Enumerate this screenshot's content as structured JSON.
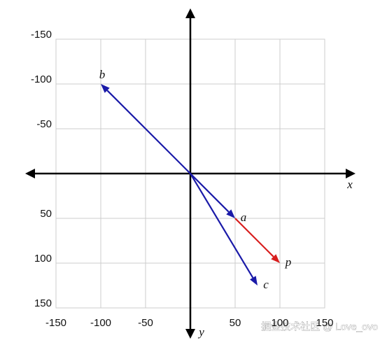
{
  "chart_data": {
    "type": "vector",
    "x_label": "x",
    "y_label": "y",
    "xlim": [
      -150,
      150
    ],
    "ylim": [
      150,
      -150
    ],
    "xticks": [
      -150,
      -100,
      -50,
      50,
      100,
      150
    ],
    "yticks": [
      -150,
      -100,
      -50,
      50,
      100,
      150
    ],
    "grid": true,
    "vectors": [
      {
        "name": "a",
        "color": "#1a1aa8",
        "start": [
          0,
          0
        ],
        "end": [
          50,
          50
        ]
      },
      {
        "name": "b",
        "color": "#1a1aa8",
        "start": [
          0,
          0
        ],
        "end": [
          -100,
          -100
        ]
      },
      {
        "name": "c",
        "color": "#1a1aa8",
        "start": [
          0,
          0
        ],
        "end": [
          75,
          125
        ]
      },
      {
        "name": "p",
        "color": "#d81e1e",
        "start": [
          50,
          50
        ],
        "end": [
          100,
          100
        ]
      }
    ],
    "watermark": "掘金技术社区 @ Love_ovo"
  }
}
